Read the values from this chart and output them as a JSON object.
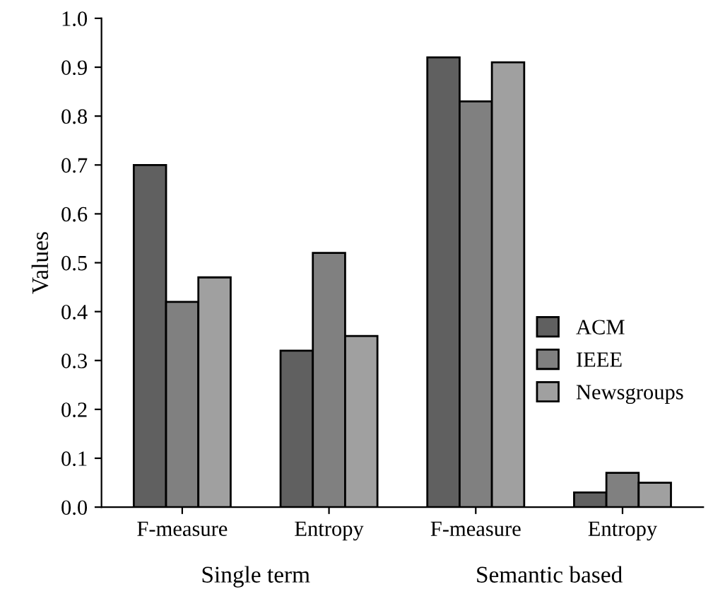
{
  "chart_data": {
    "type": "bar",
    "ylabel": "Values",
    "categories": [
      "F-measure",
      "Entropy",
      "F-measure",
      "Entropy"
    ],
    "series": [
      {
        "name": "ACM",
        "color": "#606060",
        "values": [
          0.7,
          0.32,
          0.92,
          0.03
        ]
      },
      {
        "name": "IEEE",
        "color": "#808080",
        "values": [
          0.42,
          0.52,
          0.83,
          0.07
        ]
      },
      {
        "name": "Newsgroups",
        "color": "#a0a0a0",
        "values": [
          0.47,
          0.35,
          0.91,
          0.05
        ]
      }
    ],
    "annotations": [
      "Single term",
      "Semantic based"
    ],
    "ylim": [
      0,
      1.0
    ],
    "yticks": [
      "0.0",
      0.1,
      0.2,
      0.3,
      0.4,
      0.5,
      0.6,
      0.7,
      0.8,
      0.9,
      "1.0"
    ],
    "grid": false,
    "legend": "right"
  }
}
